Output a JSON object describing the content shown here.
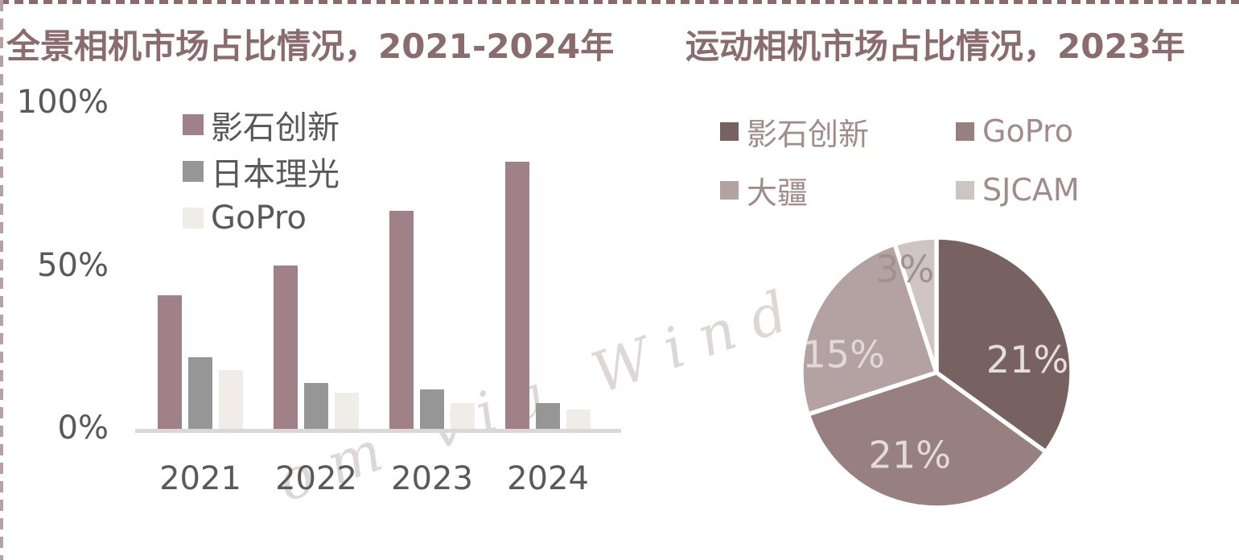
{
  "page": {
    "background": "#ffffff",
    "top_border_color": "#876c6d",
    "left_border_color": "#b5a2a2",
    "title_color": "#8a6c6f",
    "axis_text_color": "#595959",
    "axis_line_color": "#d9d9d9"
  },
  "watermark": {
    "text": "om via Wind"
  },
  "chart_data": [
    {
      "type": "bar",
      "title": "全景相机市场占比情况，2021-2024年",
      "categories": [
        "2021",
        "2022",
        "2023",
        "2024"
      ],
      "series": [
        {
          "name": "影石创新",
          "color": "#9f8187",
          "values": [
            41,
            50,
            67,
            82
          ]
        },
        {
          "name": "日本理光",
          "color": "#969696",
          "values": [
            22,
            14,
            12,
            8
          ]
        },
        {
          "name": "GoPro",
          "color": "#f0ece7",
          "values": [
            18,
            11,
            8,
            6
          ]
        }
      ],
      "ylim": [
        0,
        100
      ],
      "yticks": [
        {
          "label": "100%",
          "value": 100
        },
        {
          "label": "50%",
          "value": 50
        },
        {
          "label": "0%",
          "value": 0
        }
      ],
      "grid": false,
      "legend_position": "inside-top-left"
    },
    {
      "type": "pie",
      "title": "运动相机市场占比情况，2023年",
      "slices": [
        {
          "name": "影石创新",
          "value": 21,
          "label": "21%",
          "color": "#786261",
          "label_color": "#e6dddd"
        },
        {
          "name": "GoPro",
          "value": 21,
          "label": "21%",
          "color": "#97807f",
          "label_color": "#e4dada"
        },
        {
          "name": "大疆",
          "value": 15,
          "label": "15%",
          "color": "#b4a2a2",
          "label_color": "#e2d8d8"
        },
        {
          "name": "SJCAM",
          "value": 3,
          "label": "3%",
          "color": "#cfc4c4",
          "label_color": "#a29090"
        }
      ],
      "start_angle_deg": 0,
      "direction": "clockwise",
      "legend_position": "top"
    }
  ]
}
